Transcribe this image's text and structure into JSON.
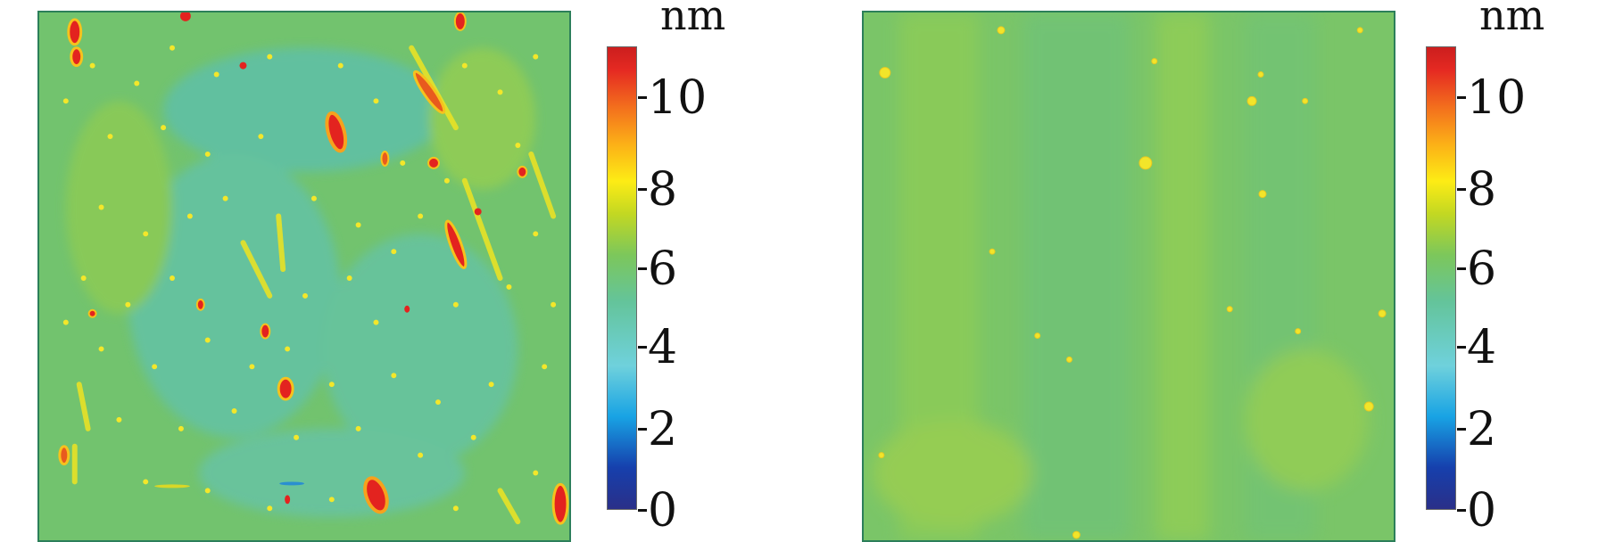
{
  "panels": [
    {
      "unit": "nm",
      "ticks": [
        "0",
        "2",
        "4",
        "6",
        "8",
        "10"
      ]
    },
    {
      "unit": "nm",
      "ticks": [
        "0",
        "2",
        "4",
        "6",
        "8",
        "10"
      ]
    }
  ],
  "colorscale": [
    "#2a2f88",
    "#1640ad",
    "#18a3e4",
    "#6fd1dc",
    "#64c49a",
    "#7cc75b",
    "#c3d822",
    "#fdec15",
    "#fcb017",
    "#f36f1d",
    "#e52a22"
  ]
}
